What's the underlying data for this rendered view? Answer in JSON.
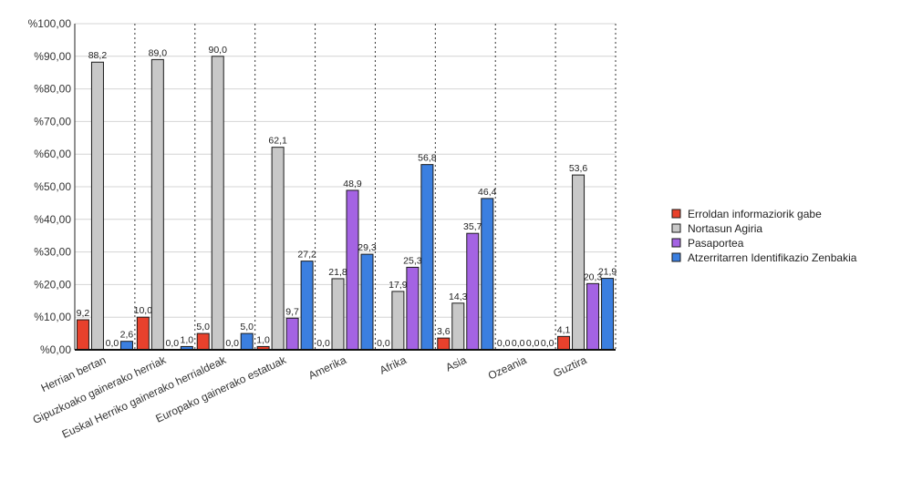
{
  "chart_data": {
    "type": "bar",
    "title": "",
    "xlabel": "",
    "ylabel": "",
    "ylim": [
      0,
      100
    ],
    "y_ticks": [
      "%0,00",
      "%10,00",
      "%20,00",
      "%30,00",
      "%40,00",
      "%50,00",
      "%60,00",
      "%70,00",
      "%80,00",
      "%90,00",
      "%100,00"
    ],
    "grid": true,
    "legend_position": "right",
    "categories": [
      "Herrian bertan",
      "Gipuzkoako gainerako herriak",
      "Euskal Herriko gainerako herrialdeak",
      "Europako gainerako estatuak",
      "Amerika",
      "Afrika",
      "Asia",
      "Ozeania",
      "Guztira"
    ],
    "series": [
      {
        "name": "Erroldan informaziorik gabe",
        "color": "#e8412c",
        "values": [
          9.2,
          10.0,
          5.0,
          1.0,
          0.0,
          0.0,
          3.6,
          0.0,
          4.1
        ],
        "labels": [
          "9,2",
          "10,0",
          "5,0",
          "1,0",
          "0,0",
          "0,0",
          "3,6",
          "0,0",
          "4,1"
        ]
      },
      {
        "name": "Nortasun Agiria",
        "color": "#c8c8c8",
        "values": [
          88.2,
          89.0,
          90.0,
          62.1,
          21.8,
          17.9,
          14.3,
          0.0,
          53.6
        ],
        "labels": [
          "88,2",
          "89,0",
          "90,0",
          "62,1",
          "21,8",
          "17,9",
          "14,3",
          "0,0",
          "53,6"
        ]
      },
      {
        "name": "Pasaportea",
        "color": "#a463e3",
        "values": [
          0.0,
          0.0,
          0.0,
          9.7,
          48.9,
          25.3,
          35.7,
          0.0,
          20.3
        ],
        "labels": [
          "0,0",
          "0,0",
          "0,0",
          "9,7",
          "48,9",
          "25,3",
          "35,7",
          "0,0",
          "20,3"
        ]
      },
      {
        "name": "Atzerritarren Identifikazio Zenbakia",
        "color": "#3b7fe0",
        "values": [
          2.6,
          1.0,
          5.0,
          27.2,
          29.3,
          56.8,
          46.4,
          0.0,
          21.9
        ],
        "labels": [
          "2,6",
          "1,0",
          "5,0",
          "27,2",
          "29,3",
          "56,8",
          "46,4",
          "0,0",
          "21,9"
        ]
      }
    ]
  }
}
